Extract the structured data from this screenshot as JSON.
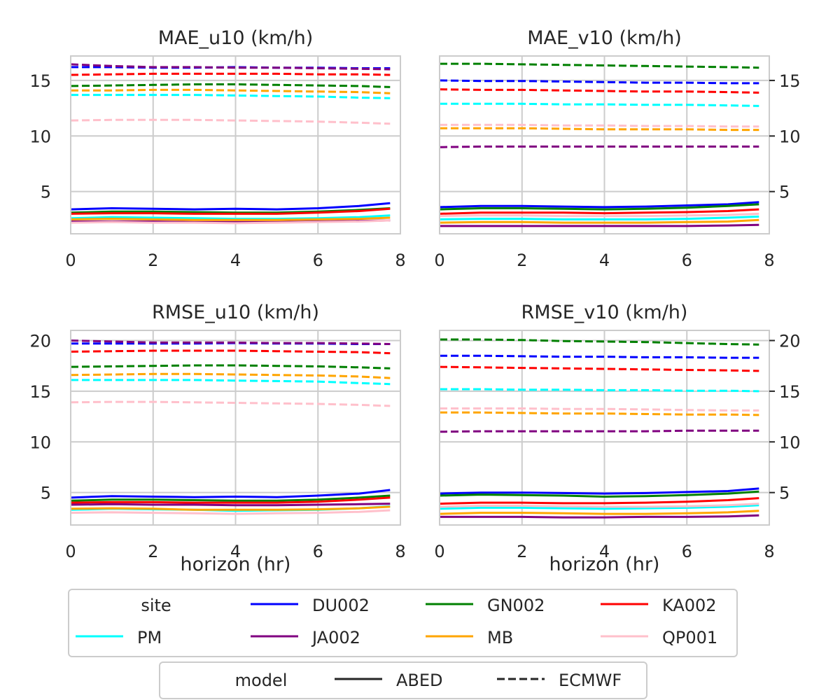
{
  "legend_site": {
    "title": "site",
    "entries": [
      {
        "name": "DU002",
        "color": "#0000ff"
      },
      {
        "name": "GN002",
        "color": "#008000"
      },
      {
        "name": "KA002",
        "color": "#ff0000"
      },
      {
        "name": "PM",
        "color": "#00ffff"
      },
      {
        "name": "JA002",
        "color": "#800080"
      },
      {
        "name": "MB",
        "color": "#ffa500"
      },
      {
        "name": "QP001",
        "color": "#ffc0cb"
      }
    ]
  },
  "legend_model": {
    "title": "model",
    "entries": [
      {
        "name": "ABED",
        "style": "solid"
      },
      {
        "name": "ECMWF",
        "style": "dashed"
      }
    ]
  },
  "chart_data": [
    {
      "type": "line",
      "title": "MAE_u10 (km/h)",
      "xlabel": "",
      "xlim": [
        0,
        8
      ],
      "ylim": [
        1.2,
        17.2
      ],
      "xticks": [
        0,
        2,
        4,
        6,
        8
      ],
      "yticks": [
        5,
        10,
        15
      ],
      "yaxis_side": "left",
      "x": [
        0,
        1,
        2,
        3,
        4,
        5,
        6,
        7,
        7.75
      ],
      "series": [
        {
          "site": "DU002",
          "model": "ABED",
          "color": "#0000ff",
          "values": [
            3.4,
            3.5,
            3.45,
            3.4,
            3.45,
            3.4,
            3.5,
            3.7,
            3.95
          ]
        },
        {
          "site": "GN002",
          "model": "ABED",
          "color": "#008000",
          "values": [
            3.1,
            3.2,
            3.2,
            3.15,
            3.1,
            3.1,
            3.2,
            3.35,
            3.5
          ]
        },
        {
          "site": "KA002",
          "model": "ABED",
          "color": "#ff0000",
          "values": [
            3.0,
            3.05,
            3.05,
            3.0,
            3.0,
            3.0,
            3.1,
            3.25,
            3.45
          ]
        },
        {
          "site": "PM",
          "model": "ABED",
          "color": "#00ffff",
          "values": [
            2.6,
            2.7,
            2.65,
            2.6,
            2.55,
            2.55,
            2.6,
            2.7,
            2.85
          ]
        },
        {
          "site": "JA002",
          "model": "ABED",
          "color": "#800080",
          "values": [
            2.3,
            2.3,
            2.3,
            2.25,
            2.25,
            2.25,
            2.3,
            2.35,
            2.4
          ]
        },
        {
          "site": "MB",
          "model": "ABED",
          "color": "#ffa500",
          "values": [
            2.5,
            2.55,
            2.5,
            2.45,
            2.45,
            2.45,
            2.5,
            2.55,
            2.65
          ]
        },
        {
          "site": "QP001",
          "model": "ABED",
          "color": "#ffc0cb",
          "values": [
            2.2,
            2.25,
            2.2,
            2.2,
            2.15,
            2.2,
            2.25,
            2.3,
            2.4
          ]
        },
        {
          "site": "DU002",
          "model": "ECMWF",
          "color": "#0000ff",
          "values": [
            16.2,
            16.2,
            16.15,
            16.15,
            16.2,
            16.15,
            16.15,
            16.1,
            16.1
          ]
        },
        {
          "site": "GN002",
          "model": "ECMWF",
          "color": "#008000",
          "values": [
            14.5,
            14.55,
            14.6,
            14.65,
            14.65,
            14.6,
            14.55,
            14.5,
            14.4
          ]
        },
        {
          "site": "KA002",
          "model": "ECMWF",
          "color": "#ff0000",
          "values": [
            15.5,
            15.55,
            15.6,
            15.6,
            15.6,
            15.6,
            15.55,
            15.55,
            15.5
          ]
        },
        {
          "site": "PM",
          "model": "ECMWF",
          "color": "#00ffff",
          "values": [
            13.7,
            13.7,
            13.7,
            13.7,
            13.65,
            13.6,
            13.55,
            13.45,
            13.4
          ]
        },
        {
          "site": "JA002",
          "model": "ECMWF",
          "color": "#800080",
          "values": [
            16.45,
            16.3,
            16.2,
            16.2,
            16.15,
            16.15,
            16.1,
            16.05,
            16.0
          ]
        },
        {
          "site": "MB",
          "model": "ECMWF",
          "color": "#ffa500",
          "values": [
            14.1,
            14.1,
            14.15,
            14.15,
            14.1,
            14.05,
            14.0,
            13.95,
            13.85
          ]
        },
        {
          "site": "QP001",
          "model": "ECMWF",
          "color": "#ffc0cb",
          "values": [
            11.4,
            11.45,
            11.45,
            11.45,
            11.4,
            11.35,
            11.3,
            11.2,
            11.1
          ]
        }
      ]
    },
    {
      "type": "line",
      "title": "MAE_v10 (km/h)",
      "xlabel": "",
      "xlim": [
        0,
        8
      ],
      "ylim": [
        1.2,
        17.2
      ],
      "xticks": [
        0,
        2,
        4,
        6,
        8
      ],
      "yticks": [
        5,
        10,
        15
      ],
      "yaxis_side": "right",
      "x": [
        0,
        1,
        2,
        3,
        4,
        5,
        6,
        7,
        7.75
      ],
      "series": [
        {
          "site": "DU002",
          "model": "ABED",
          "color": "#0000ff",
          "values": [
            3.6,
            3.7,
            3.7,
            3.65,
            3.6,
            3.65,
            3.75,
            3.85,
            4.05
          ]
        },
        {
          "site": "GN002",
          "model": "ABED",
          "color": "#008000",
          "values": [
            3.4,
            3.5,
            3.5,
            3.45,
            3.4,
            3.45,
            3.55,
            3.7,
            3.85
          ]
        },
        {
          "site": "KA002",
          "model": "ABED",
          "color": "#ff0000",
          "values": [
            3.0,
            3.1,
            3.1,
            3.1,
            3.05,
            3.1,
            3.15,
            3.25,
            3.4
          ]
        },
        {
          "site": "PM",
          "model": "ABED",
          "color": "#00ffff",
          "values": [
            2.5,
            2.55,
            2.55,
            2.5,
            2.5,
            2.5,
            2.55,
            2.65,
            2.75
          ]
        },
        {
          "site": "JA002",
          "model": "ABED",
          "color": "#800080",
          "values": [
            1.9,
            1.9,
            1.9,
            1.9,
            1.9,
            1.9,
            1.9,
            1.95,
            2.0
          ]
        },
        {
          "site": "MB",
          "model": "ABED",
          "color": "#ffa500",
          "values": [
            2.2,
            2.25,
            2.25,
            2.2,
            2.2,
            2.2,
            2.25,
            2.3,
            2.45
          ]
        },
        {
          "site": "QP001",
          "model": "ABED",
          "color": "#ffc0cb",
          "values": [
            2.8,
            2.85,
            2.85,
            2.8,
            2.8,
            2.8,
            2.85,
            2.9,
            3.0
          ]
        },
        {
          "site": "DU002",
          "model": "ECMWF",
          "color": "#0000ff",
          "values": [
            15.0,
            14.95,
            14.95,
            14.9,
            14.85,
            14.8,
            14.8,
            14.75,
            14.75
          ]
        },
        {
          "site": "GN002",
          "model": "ECMWF",
          "color": "#008000",
          "values": [
            16.5,
            16.5,
            16.45,
            16.4,
            16.35,
            16.3,
            16.25,
            16.2,
            16.15
          ]
        },
        {
          "site": "KA002",
          "model": "ECMWF",
          "color": "#ff0000",
          "values": [
            14.2,
            14.15,
            14.15,
            14.1,
            14.05,
            14.0,
            14.0,
            13.95,
            13.9
          ]
        },
        {
          "site": "PM",
          "model": "ECMWF",
          "color": "#00ffff",
          "values": [
            12.9,
            12.9,
            12.9,
            12.85,
            12.85,
            12.8,
            12.8,
            12.75,
            12.7
          ]
        },
        {
          "site": "JA002",
          "model": "ECMWF",
          "color": "#800080",
          "values": [
            9.0,
            9.05,
            9.05,
            9.05,
            9.05,
            9.05,
            9.05,
            9.05,
            9.05
          ]
        },
        {
          "site": "MB",
          "model": "ECMWF",
          "color": "#ffa500",
          "values": [
            10.7,
            10.7,
            10.7,
            10.65,
            10.6,
            10.6,
            10.6,
            10.55,
            10.55
          ]
        },
        {
          "site": "QP001",
          "model": "ECMWF",
          "color": "#ffc0cb",
          "values": [
            11.0,
            11.0,
            11.0,
            10.95,
            10.95,
            10.9,
            10.9,
            10.85,
            10.85
          ]
        }
      ]
    },
    {
      "type": "line",
      "title": "RMSE_u10 (km/h)",
      "xlabel": "horizon (hr)",
      "xlim": [
        0,
        8
      ],
      "ylim": [
        1.8,
        21.0
      ],
      "xticks": [
        0,
        2,
        4,
        6,
        8
      ],
      "yticks": [
        5,
        10,
        15,
        20
      ],
      "yaxis_side": "left",
      "x": [
        0,
        1,
        2,
        3,
        4,
        5,
        6,
        7,
        7.75
      ],
      "series": [
        {
          "site": "DU002",
          "model": "ABED",
          "color": "#0000ff",
          "values": [
            4.5,
            4.65,
            4.6,
            4.55,
            4.6,
            4.55,
            4.7,
            4.9,
            5.25
          ]
        },
        {
          "site": "GN002",
          "model": "ABED",
          "color": "#008000",
          "values": [
            4.2,
            4.3,
            4.3,
            4.25,
            4.2,
            4.2,
            4.3,
            4.5,
            4.7
          ]
        },
        {
          "site": "KA002",
          "model": "ABED",
          "color": "#ff0000",
          "values": [
            4.0,
            4.05,
            4.05,
            4.0,
            4.0,
            4.0,
            4.1,
            4.3,
            4.5
          ]
        },
        {
          "site": "PM",
          "model": "ABED",
          "color": "#00ffff",
          "values": [
            3.3,
            3.4,
            3.35,
            3.3,
            3.2,
            3.25,
            3.3,
            3.45,
            3.65
          ]
        },
        {
          "site": "JA002",
          "model": "ABED",
          "color": "#800080",
          "values": [
            3.8,
            3.85,
            3.8,
            3.8,
            3.75,
            3.75,
            3.8,
            3.85,
            3.9
          ]
        },
        {
          "site": "MB",
          "model": "ABED",
          "color": "#ffa500",
          "values": [
            3.4,
            3.45,
            3.4,
            3.3,
            3.3,
            3.3,
            3.35,
            3.45,
            3.6
          ]
        },
        {
          "site": "QP001",
          "model": "ABED",
          "color": "#ffc0cb",
          "values": [
            3.0,
            3.05,
            3.0,
            2.95,
            2.9,
            2.95,
            3.0,
            3.1,
            3.25
          ]
        },
        {
          "site": "DU002",
          "model": "ECMWF",
          "color": "#0000ff",
          "values": [
            19.7,
            19.7,
            19.7,
            19.7,
            19.75,
            19.7,
            19.7,
            19.65,
            19.65
          ]
        },
        {
          "site": "GN002",
          "model": "ECMWF",
          "color": "#008000",
          "values": [
            17.4,
            17.45,
            17.5,
            17.55,
            17.55,
            17.5,
            17.45,
            17.35,
            17.25
          ]
        },
        {
          "site": "KA002",
          "model": "ECMWF",
          "color": "#ff0000",
          "values": [
            18.9,
            18.95,
            19.0,
            19.0,
            19.0,
            18.95,
            18.9,
            18.85,
            18.75
          ]
        },
        {
          "site": "PM",
          "model": "ECMWF",
          "color": "#00ffff",
          "values": [
            16.1,
            16.1,
            16.1,
            16.1,
            16.05,
            16.0,
            15.95,
            15.8,
            15.7
          ]
        },
        {
          "site": "JA002",
          "model": "ECMWF",
          "color": "#800080",
          "values": [
            20.0,
            19.9,
            19.8,
            19.8,
            19.8,
            19.75,
            19.75,
            19.7,
            19.65
          ]
        },
        {
          "site": "MB",
          "model": "ECMWF",
          "color": "#ffa500",
          "values": [
            16.6,
            16.65,
            16.7,
            16.7,
            16.65,
            16.6,
            16.55,
            16.45,
            16.3
          ]
        },
        {
          "site": "QP001",
          "model": "ECMWF",
          "color": "#ffc0cb",
          "values": [
            13.9,
            13.95,
            13.95,
            13.9,
            13.85,
            13.8,
            13.75,
            13.65,
            13.55
          ]
        }
      ]
    },
    {
      "type": "line",
      "title": "RMSE_v10 (km/h)",
      "xlabel": "horizon (hr)",
      "xlim": [
        0,
        8
      ],
      "ylim": [
        1.8,
        21.0
      ],
      "xticks": [
        0,
        2,
        4,
        6,
        8
      ],
      "yticks": [
        5,
        10,
        15,
        20
      ],
      "yaxis_side": "right",
      "x": [
        0,
        1,
        2,
        3,
        4,
        5,
        6,
        7,
        7.75
      ],
      "series": [
        {
          "site": "DU002",
          "model": "ABED",
          "color": "#0000ff",
          "values": [
            4.9,
            5.0,
            5.0,
            4.95,
            4.9,
            4.95,
            5.05,
            5.15,
            5.4
          ]
        },
        {
          "site": "GN002",
          "model": "ABED",
          "color": "#008000",
          "values": [
            4.7,
            4.8,
            4.75,
            4.7,
            4.6,
            4.65,
            4.75,
            4.9,
            5.1
          ]
        },
        {
          "site": "KA002",
          "model": "ABED",
          "color": "#ff0000",
          "values": [
            3.9,
            4.0,
            4.0,
            3.95,
            3.95,
            4.0,
            4.1,
            4.25,
            4.45
          ]
        },
        {
          "site": "PM",
          "model": "ABED",
          "color": "#00ffff",
          "values": [
            3.4,
            3.5,
            3.5,
            3.45,
            3.4,
            3.45,
            3.5,
            3.6,
            3.75
          ]
        },
        {
          "site": "JA002",
          "model": "ABED",
          "color": "#800080",
          "values": [
            2.6,
            2.6,
            2.6,
            2.55,
            2.55,
            2.6,
            2.6,
            2.65,
            2.75
          ]
        },
        {
          "site": "MB",
          "model": "ABED",
          "color": "#ffa500",
          "values": [
            2.9,
            3.0,
            3.0,
            2.95,
            2.9,
            2.9,
            2.95,
            3.05,
            3.2
          ]
        },
        {
          "site": "QP001",
          "model": "ABED",
          "color": "#ffc0cb",
          "values": [
            3.6,
            3.7,
            3.7,
            3.65,
            3.6,
            3.6,
            3.65,
            3.75,
            3.9
          ]
        },
        {
          "site": "DU002",
          "model": "ECMWF",
          "color": "#0000ff",
          "values": [
            18.5,
            18.5,
            18.45,
            18.4,
            18.4,
            18.35,
            18.35,
            18.3,
            18.3
          ]
        },
        {
          "site": "GN002",
          "model": "ECMWF",
          "color": "#008000",
          "values": [
            20.1,
            20.1,
            20.05,
            19.95,
            19.9,
            19.85,
            19.75,
            19.65,
            19.6
          ]
        },
        {
          "site": "KA002",
          "model": "ECMWF",
          "color": "#ff0000",
          "values": [
            17.4,
            17.35,
            17.3,
            17.25,
            17.2,
            17.15,
            17.1,
            17.05,
            17.0
          ]
        },
        {
          "site": "PM",
          "model": "ECMWF",
          "color": "#00ffff",
          "values": [
            15.2,
            15.2,
            15.15,
            15.15,
            15.1,
            15.1,
            15.05,
            15.05,
            15.0
          ]
        },
        {
          "site": "JA002",
          "model": "ECMWF",
          "color": "#800080",
          "values": [
            11.0,
            11.05,
            11.05,
            11.05,
            11.05,
            11.05,
            11.1,
            11.1,
            11.1
          ]
        },
        {
          "site": "MB",
          "model": "ECMWF",
          "color": "#ffa500",
          "values": [
            12.9,
            12.9,
            12.85,
            12.8,
            12.8,
            12.75,
            12.7,
            12.7,
            12.65
          ]
        },
        {
          "site": "QP001",
          "model": "ECMWF",
          "color": "#ffc0cb",
          "values": [
            13.3,
            13.3,
            13.3,
            13.25,
            13.25,
            13.2,
            13.15,
            13.1,
            13.1
          ]
        }
      ]
    }
  ]
}
